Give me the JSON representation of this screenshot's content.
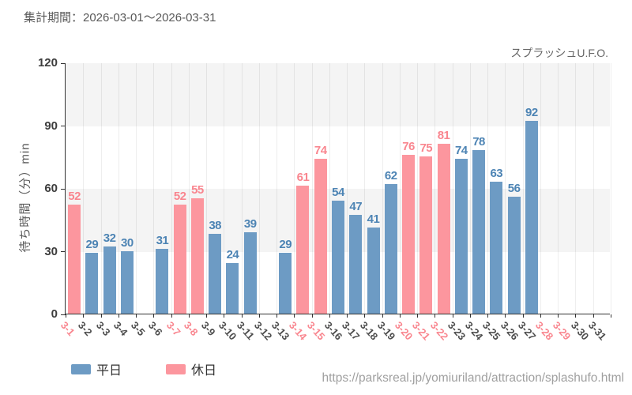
{
  "header": {
    "title": "集計期間：2026-03-01～2026-03-31",
    "attraction": "スプラッシュU.F.O."
  },
  "chart_data": {
    "type": "bar",
    "ylabel": "待ち時間（分）min",
    "ylim": [
      0,
      120
    ],
    "yticks": [
      0,
      30,
      60,
      90,
      120
    ],
    "grid": "vertical-gridlines with alternating horizontal gray bands",
    "legend_position": "bottom-left",
    "legend": [
      {
        "label": "平日",
        "bar_color": "#6d9bc4",
        "label_color": "#4d84b4"
      },
      {
        "label": "休日",
        "bar_color": "#fc969e",
        "label_color": "#f9868f"
      }
    ],
    "axis_colors": {
      "xlabel_weekday": "#4d4d4d",
      "xlabel_holiday": "#f9868f",
      "axis_line": "#333333"
    },
    "days": [
      {
        "date": "3-1",
        "value": 52,
        "day_type": "holiday"
      },
      {
        "date": "3-2",
        "value": 29,
        "day_type": "weekday"
      },
      {
        "date": "3-3",
        "value": 32,
        "day_type": "weekday"
      },
      {
        "date": "3-4",
        "value": 30,
        "day_type": "weekday"
      },
      {
        "date": "3-5",
        "value": null,
        "day_type": "weekday"
      },
      {
        "date": "3-6",
        "value": 31,
        "day_type": "weekday"
      },
      {
        "date": "3-7",
        "value": 52,
        "day_type": "holiday"
      },
      {
        "date": "3-8",
        "value": 55,
        "day_type": "holiday"
      },
      {
        "date": "3-9",
        "value": 38,
        "day_type": "weekday"
      },
      {
        "date": "3-10",
        "value": 24,
        "day_type": "weekday"
      },
      {
        "date": "3-11",
        "value": 39,
        "day_type": "weekday"
      },
      {
        "date": "3-12",
        "value": null,
        "day_type": "weekday"
      },
      {
        "date": "3-13",
        "value": 29,
        "day_type": "weekday"
      },
      {
        "date": "3-14",
        "value": 61,
        "day_type": "holiday"
      },
      {
        "date": "3-15",
        "value": 74,
        "day_type": "holiday"
      },
      {
        "date": "3-16",
        "value": 54,
        "day_type": "weekday"
      },
      {
        "date": "3-17",
        "value": 47,
        "day_type": "weekday"
      },
      {
        "date": "3-18",
        "value": 41,
        "day_type": "weekday"
      },
      {
        "date": "3-19",
        "value": 62,
        "day_type": "weekday"
      },
      {
        "date": "3-20",
        "value": 76,
        "day_type": "holiday"
      },
      {
        "date": "3-21",
        "value": 75,
        "day_type": "holiday"
      },
      {
        "date": "3-22",
        "value": 81,
        "day_type": "holiday"
      },
      {
        "date": "3-23",
        "value": 74,
        "day_type": "weekday"
      },
      {
        "date": "3-24",
        "value": 78,
        "day_type": "weekday"
      },
      {
        "date": "3-25",
        "value": 63,
        "day_type": "weekday"
      },
      {
        "date": "3-26",
        "value": 56,
        "day_type": "weekday"
      },
      {
        "date": "3-27",
        "value": 92,
        "day_type": "weekday"
      },
      {
        "date": "3-28",
        "value": null,
        "day_type": "holiday"
      },
      {
        "date": "3-29",
        "value": null,
        "day_type": "holiday"
      },
      {
        "date": "3-30",
        "value": null,
        "day_type": "weekday"
      },
      {
        "date": "3-31",
        "value": null,
        "day_type": "weekday"
      }
    ]
  },
  "footer": {
    "url": "https://parksreal.jp/yomiuriland/attraction/splashufo.html"
  }
}
